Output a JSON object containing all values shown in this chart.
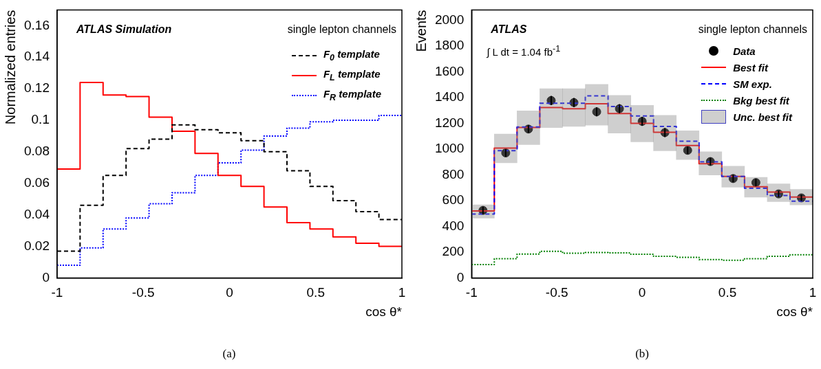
{
  "chart_data": [
    {
      "type": "histogram",
      "xlabel": "cos θ*",
      "ylabel": "Normalized entries",
      "bins": [
        -1,
        -0.8667,
        -0.7333,
        -0.6,
        -0.4667,
        -0.3333,
        -0.2,
        -0.0667,
        0.0667,
        0.2,
        0.3333,
        0.4667,
        0.6,
        0.7333,
        0.8667,
        1
      ],
      "series": [
        {
          "name": "F$_{0}$ template",
          "color": "#000000",
          "line_style": "dashed",
          "values": [
            0.017,
            0.046,
            0.065,
            0.082,
            0.088,
            0.097,
            0.094,
            0.092,
            0.087,
            0.08,
            0.068,
            0.058,
            0.049,
            0.042,
            0.037
          ]
        },
        {
          "name": "F$_{L}$ template",
          "color": "#ff0000",
          "line_style": "solid",
          "values": [
            0.069,
            0.124,
            0.116,
            0.115,
            0.102,
            0.093,
            0.079,
            0.065,
            0.058,
            0.045,
            0.035,
            0.031,
            0.026,
            0.022,
            0.02
          ]
        },
        {
          "name": "F$_{R}$ template",
          "color": "#0000ff",
          "line_style": "dotted",
          "values": [
            0.008,
            0.019,
            0.031,
            0.038,
            0.047,
            0.054,
            0.065,
            0.073,
            0.081,
            0.09,
            0.095,
            0.099,
            0.1,
            0.1,
            0.103
          ]
        }
      ],
      "xlim": [
        -1,
        1
      ],
      "xticks": [
        -1,
        -0.5,
        0,
        0.5,
        1
      ],
      "ylim": [
        0,
        0.17
      ],
      "yticks": [
        0,
        0.02,
        0.04,
        0.06,
        0.08,
        0.1,
        0.12,
        0.14,
        0.16
      ],
      "grid": false,
      "legend": "top right",
      "annotations": [
        "ATLAS Simulation",
        "single lepton channels",
        "(a)"
      ]
    },
    {
      "type": "histogram",
      "xlabel": "cos θ*",
      "ylabel": "Events",
      "bins": [
        -1,
        -0.8667,
        -0.7333,
        -0.6,
        -0.4667,
        -0.3333,
        -0.2,
        -0.0667,
        0.0667,
        0.2,
        0.3333,
        0.4667,
        0.6,
        0.7333,
        0.8667,
        1
      ],
      "series": [
        {
          "name": "Unc. best fit",
          "type": "bar",
          "color": "#888888",
          "x": [
            -0.9333,
            -0.8,
            -0.6667,
            -0.5333,
            -0.4,
            -0.2667,
            -0.1333,
            0,
            0.1333,
            0.2667,
            0.4,
            0.5333,
            0.6667,
            0.8,
            0.9333
          ],
          "base": [
            464,
            893,
            1035,
            1167,
            1176,
            1185,
            1124,
            1056,
            987,
            918,
            798,
            704,
            627,
            592,
            567
          ],
          "values": [
            103,
            223,
            261,
            301,
            292,
            317,
            292,
            283,
            275,
            224,
            181,
            163,
            154,
            138,
            120
          ]
        },
        {
          "name": "Bkg best fit",
          "color": "#008000",
          "line_style": "dotted",
          "values": [
            103,
            149,
            185,
            206,
            191,
            197,
            194,
            184,
            167,
            160,
            142,
            137,
            149,
            168,
            180
          ]
        },
        {
          "name": "SM exp.",
          "color": "#0000ff",
          "line_style": "dashed",
          "values": [
            496,
            987,
            1172,
            1356,
            1356,
            1413,
            1330,
            1257,
            1176,
            1061,
            901,
            788,
            695,
            640,
            596
          ]
        },
        {
          "name": "Best fit",
          "color": "#ff0000",
          "line_style": "solid",
          "values": [
            520,
            1008,
            1167,
            1322,
            1313,
            1351,
            1275,
            1200,
            1130,
            1027,
            886,
            788,
            707,
            666,
            627
          ]
        },
        {
          "name": "Data",
          "type": "scatter",
          "color": "#000000",
          "marker": "circle",
          "x": [
            -0.9333,
            -0.8,
            -0.6667,
            -0.5333,
            -0.4,
            -0.2667,
            -0.1333,
            0,
            0.1333,
            0.2667,
            0.4,
            0.5333,
            0.6667,
            0.8,
            0.9333
          ],
          "values": [
            524,
            970,
            1155,
            1377,
            1361,
            1289,
            1313,
            1215,
            1128,
            990,
            903,
            771,
            740,
            652,
            621
          ],
          "errors": [
            30,
            30,
            30,
            35,
            35,
            35,
            35,
            35,
            35,
            30,
            30,
            30,
            30,
            25,
            25
          ]
        }
      ],
      "xlim": [
        -1,
        1
      ],
      "xticks": [
        -1,
        -0.5,
        0,
        0.5,
        1
      ],
      "ylim": [
        0,
        2080
      ],
      "yticks": [
        0,
        200,
        400,
        600,
        800,
        1000,
        1200,
        1400,
        1600,
        1800,
        2000
      ],
      "grid": false,
      "legend": "top right",
      "annotations": [
        "ATLAS",
        "single lepton channels",
        "∫ L dt = 1.04 fb$^{-1}$",
        "(b)"
      ]
    }
  ]
}
